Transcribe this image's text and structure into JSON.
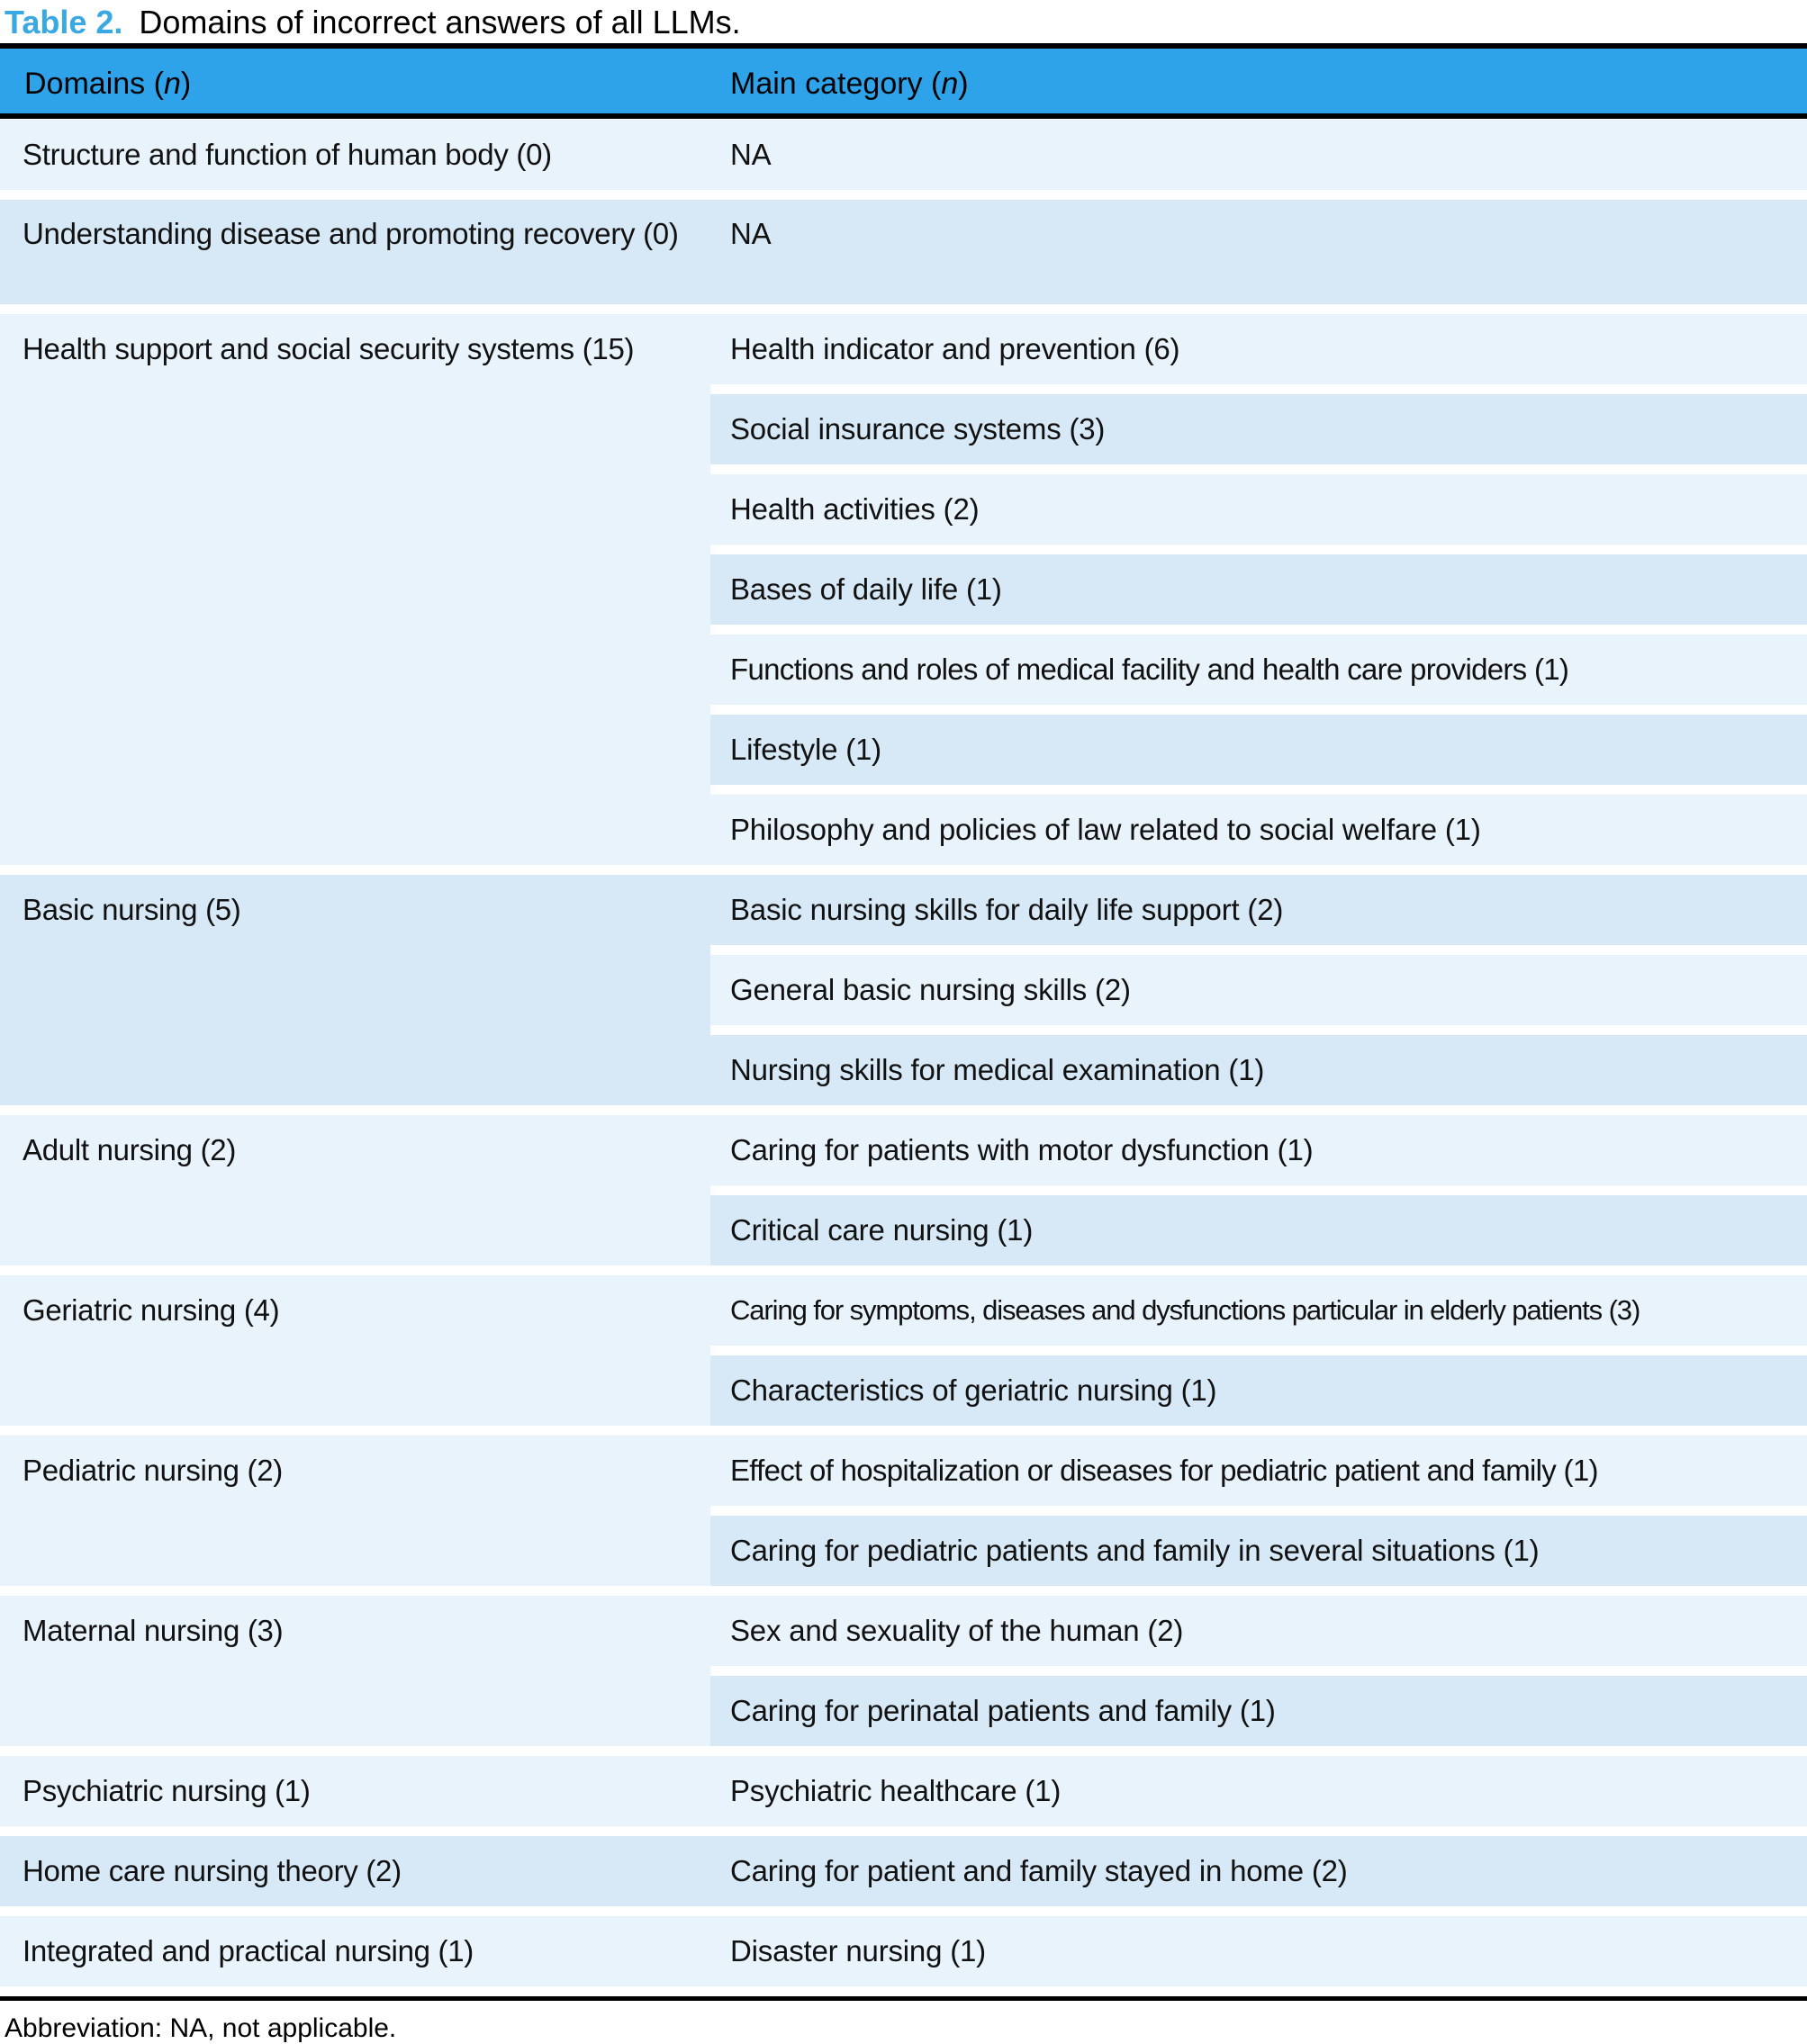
{
  "title": {
    "label": "Table 2.",
    "text": "Domains of incorrect answers of all LLMs."
  },
  "header": {
    "domains_prefix": "Domains (",
    "domains_n": "n",
    "domains_suffix": ")",
    "category_prefix": "Main category (",
    "category_n": "n",
    "category_suffix": ")"
  },
  "colors": {
    "header_bg": "#2EA3E9",
    "row_light": "#E9F3FB",
    "row_dark": "#D7E9F6",
    "title_accent": "#3AA8E3",
    "rule": "#000000"
  },
  "table": {
    "groups": [
      {
        "domain": "Structure and function of human body (0)",
        "categories": [
          "NA"
        ]
      },
      {
        "domain": "Understanding disease and promoting recovery (0)",
        "categories": [
          "NA"
        ]
      },
      {
        "domain": "Health support and social security systems (15)",
        "categories": [
          "Health indicator and prevention (6)",
          "Social insurance systems (3)",
          "Health activities (2)",
          "Bases of daily life (1)",
          "Functions and roles of medical facility and health care providers (1)",
          "Lifestyle (1)",
          "Philosophy and policies of law related to social welfare (1)"
        ]
      },
      {
        "domain": "Basic nursing (5)",
        "categories": [
          "Basic nursing skills for daily life support (2)",
          "General basic nursing skills (2)",
          "Nursing skills for medical examination (1)"
        ]
      },
      {
        "domain": "Adult nursing (2)",
        "categories": [
          "Caring for patients with motor dysfunction (1)",
          "Critical care nursing (1)"
        ]
      },
      {
        "domain": "Geriatric nursing (4)",
        "categories": [
          "Caring for symptoms, diseases and dysfunctions particular in elderly patients (3)",
          "Characteristics of geriatric nursing (1)"
        ]
      },
      {
        "domain": "Pediatric nursing (2)",
        "categories": [
          "Effect of hospitalization or diseases for pediatric patient and family (1)",
          "Caring for pediatric patients and family in several situations (1)"
        ]
      },
      {
        "domain": "Maternal nursing (3)",
        "categories": [
          "Sex and sexuality of the human (2)",
          "Caring for perinatal patients and family (1)"
        ]
      },
      {
        "domain": "Psychiatric nursing (1)",
        "categories": [
          "Psychiatric healthcare (1)"
        ]
      },
      {
        "domain": "Home care nursing theory (2)",
        "categories": [
          "Caring for patient and family stayed in home (2)"
        ]
      },
      {
        "domain": "Integrated and practical nursing (1)",
        "categories": [
          "Disaster nursing (1)"
        ]
      }
    ]
  },
  "footnote": "Abbreviation: NA, not applicable."
}
